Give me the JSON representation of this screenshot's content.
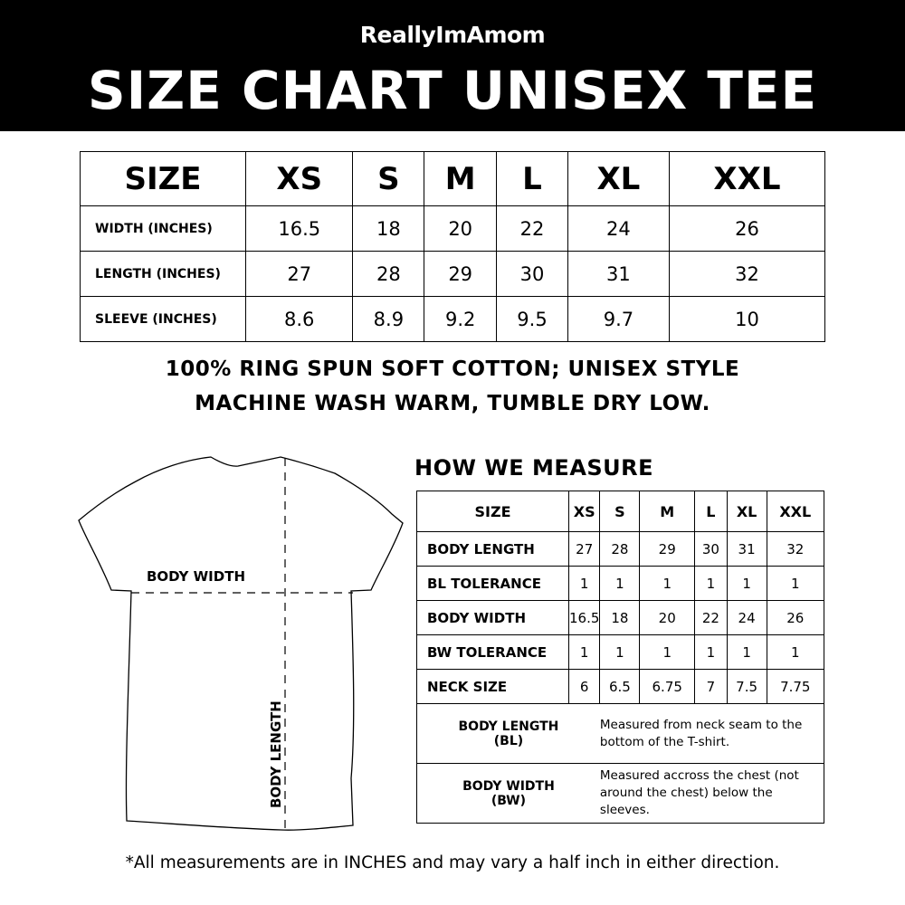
{
  "header": {
    "brand": "ReallyImAmom",
    "title": "SIZE CHART UNISEX TEE"
  },
  "size_table": {
    "header": [
      "SIZE",
      "XS",
      "S",
      "M",
      "L",
      "XL",
      "XXL"
    ],
    "rows": [
      {
        "label": "WIDTH (INCHES)",
        "values": [
          "16.5",
          "18",
          "20",
          "22",
          "24",
          "26"
        ]
      },
      {
        "label": "LENGTH (INCHES)",
        "values": [
          "27",
          "28",
          "29",
          "30",
          "31",
          "32"
        ]
      },
      {
        "label": "SLEEVE (INCHES)",
        "values": [
          "8.6",
          "8.9",
          "9.2",
          "9.5",
          "9.7",
          "10"
        ]
      }
    ]
  },
  "info": {
    "line1": "100% RING SPUN SOFT COTTON; UNISEX STYLE",
    "line2": "MACHINE WASH WARM, TUMBLE DRY LOW."
  },
  "diagram": {
    "width_label": "BODY WIDTH",
    "length_label": "BODY LENGTH"
  },
  "measure": {
    "title": "HOW WE MEASURE",
    "header": [
      "SIZE",
      "XS",
      "S",
      "M",
      "L",
      "XL",
      "XXL"
    ],
    "rows": [
      {
        "label": "BODY LENGTH",
        "values": [
          "27",
          "28",
          "29",
          "30",
          "31",
          "32"
        ]
      },
      {
        "label": "BL TOLERANCE",
        "values": [
          "1",
          "1",
          "1",
          "1",
          "1",
          "1"
        ]
      },
      {
        "label": "BODY WIDTH",
        "values": [
          "16.5",
          "18",
          "20",
          "22",
          "24",
          "26"
        ]
      },
      {
        "label": "BW TOLERANCE",
        "values": [
          "1",
          "1",
          "1",
          "1",
          "1",
          "1"
        ]
      },
      {
        "label": "NECK SIZE",
        "values": [
          "6",
          "6.5",
          "6.75",
          "7",
          "7.5",
          "7.75"
        ]
      }
    ],
    "definitions": [
      {
        "term": "BODY LENGTH",
        "abbr": "(BL)",
        "text": "Measured from neck seam to the bottom of the T-shirt."
      },
      {
        "term": "BODY WIDTH",
        "abbr": "(BW)",
        "text": "Measured accross the chest (not around the chest) below the sleeves."
      }
    ]
  },
  "footnote": "*All measurements are in INCHES and may vary a half inch in either direction."
}
